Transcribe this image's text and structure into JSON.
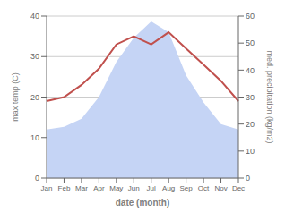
{
  "chart_data": {
    "type": "line",
    "categories": [
      "Jan",
      "Feb",
      "Mar",
      "Apr",
      "May",
      "Jun",
      "Jul",
      "Aug",
      "Sep",
      "Oct",
      "Nov",
      "Dec"
    ],
    "series": [
      {
        "type": "area",
        "axis": "y2",
        "color": "#c5d4f5",
        "values": [
          18,
          19,
          22,
          30,
          43,
          52,
          58,
          54,
          38,
          28,
          20,
          18
        ]
      },
      {
        "type": "line",
        "color": "#c0504d",
        "values": [
          19,
          20,
          23,
          27,
          33,
          35,
          33,
          36,
          32,
          28,
          24,
          19
        ]
      }
    ],
    "xlabel": "date (month)",
    "ylabel": "max temp (C)",
    "y2label": "med. precipitation (kg/m2)",
    "ylim": [
      0,
      40
    ],
    "yticks": [
      0,
      10,
      20,
      30,
      40
    ],
    "y2lim": [
      0,
      60
    ],
    "y2ticks": [
      0,
      10,
      20,
      30,
      40,
      50,
      60
    ],
    "grid": true
  }
}
